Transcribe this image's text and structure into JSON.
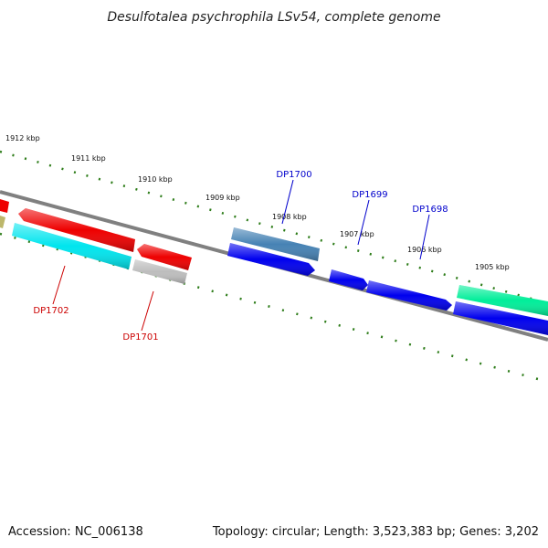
{
  "title": "Desulfotalea psychrophila LSv54, complete genome",
  "footer": {
    "accession": "Accession: NC_006138",
    "summary": "Topology: circular; Length: 3,523,383 bp; Genes: 3,202"
  },
  "colors": {
    "backbone": "#808080",
    "scale": "#2e7d1a",
    "forward_label": "#0000cc",
    "reverse_label": "#cc0000"
  },
  "scale_labels": [
    {
      "name": "scale-label-1912",
      "text": "1912 kbp"
    },
    {
      "name": "scale-label-1911",
      "text": "1911 kbp"
    },
    {
      "name": "scale-label-1910",
      "text": "1910 kbp"
    },
    {
      "name": "scale-label-1909",
      "text": "1909 kbp"
    },
    {
      "name": "scale-label-1908",
      "text": "1908 kbp"
    },
    {
      "name": "scale-label-1907",
      "text": "1907 kbp"
    },
    {
      "name": "scale-label-1906",
      "text": "1906 kbp"
    },
    {
      "name": "scale-label-1905",
      "text": "1905 kbp"
    }
  ],
  "genes": [
    {
      "name": "gene-dp1700",
      "label": "DP1700",
      "strand": "forward",
      "color": "#4682b4"
    },
    {
      "name": "gene-dp1699",
      "label": "DP1699",
      "strand": "forward",
      "color": "#0000ee"
    },
    {
      "name": "gene-dp1698",
      "label": "DP1698",
      "strand": "forward",
      "color": "#0000ee"
    },
    {
      "name": "gene-dp1702",
      "label": "DP1702",
      "strand": "reverse",
      "color": "#00e5ee"
    },
    {
      "name": "gene-dp1701",
      "label": "DP1701",
      "strand": "reverse",
      "color": "#bdbdbd"
    }
  ],
  "unlabeled_features": [
    {
      "name": "feature-red-left",
      "color": "#ee0000"
    },
    {
      "name": "feature-red-right",
      "color": "#ee0000"
    },
    {
      "name": "feature-red-edge",
      "color": "#ee0000"
    },
    {
      "name": "feature-olive-edge",
      "color": "#bdb76b"
    },
    {
      "name": "feature-blue-mid",
      "color": "#0000ee"
    },
    {
      "name": "feature-blue-right",
      "color": "#0000ee"
    },
    {
      "name": "feature-green",
      "color": "#00ee99"
    }
  ]
}
